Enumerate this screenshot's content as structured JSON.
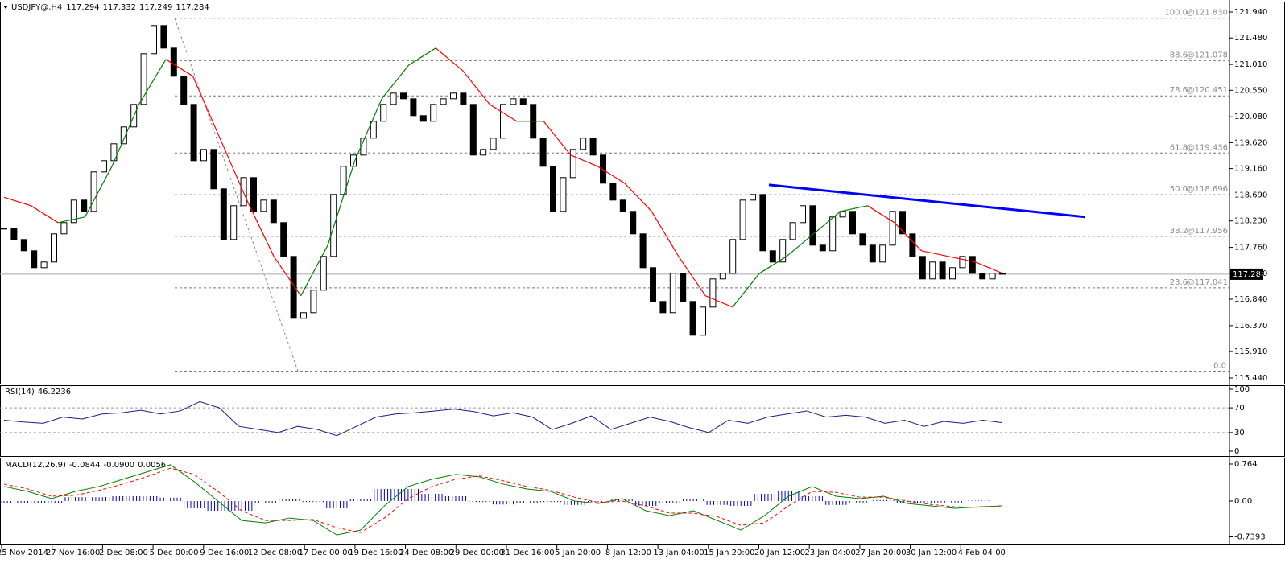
{
  "chart_data": [
    {
      "type": "candlestick",
      "title": "USDJPY@,H4",
      "header_values": [
        "117.294",
        "117.332",
        "117.249",
        "117.284"
      ],
      "closes": [
        118.1,
        117.9,
        117.7,
        117.4,
        117.5,
        118.0,
        118.2,
        118.6,
        118.4,
        119.1,
        119.3,
        119.6,
        119.9,
        120.3,
        121.2,
        121.7,
        121.3,
        120.8,
        120.3,
        119.3,
        119.5,
        118.8,
        117.9,
        118.5,
        119.0,
        118.4,
        118.6,
        118.2,
        117.6,
        116.5,
        116.6,
        117.0,
        117.6,
        118.7,
        119.2,
        119.4,
        119.7,
        120.0,
        120.3,
        120.5,
        120.4,
        120.1,
        120.0,
        120.3,
        120.4,
        120.5,
        120.3,
        119.4,
        119.5,
        119.7,
        120.3,
        120.4,
        120.3,
        119.7,
        119.2,
        118.4,
        119.0,
        119.5,
        119.7,
        119.4,
        118.9,
        118.6,
        118.4,
        118.0,
        117.4,
        116.8,
        116.6,
        117.3,
        116.8,
        116.2,
        116.7,
        117.2,
        117.3,
        117.9,
        118.6,
        118.7,
        117.7,
        117.5,
        117.9,
        118.2,
        118.5,
        117.8,
        117.7,
        118.3,
        118.4,
        118.0,
        117.8,
        117.5,
        117.8,
        118.4,
        118.0,
        117.6,
        117.2,
        117.5,
        117.2,
        117.4,
        117.6,
        117.3,
        117.2,
        117.3,
        117.284
      ],
      "ma": [
        118.65,
        118.5,
        118.2,
        118.3,
        119.2,
        120.3,
        121.1,
        120.8,
        119.7,
        118.6,
        117.6,
        116.9,
        117.8,
        119.3,
        120.4,
        121.0,
        121.3,
        120.9,
        120.3,
        120.0,
        120.0,
        119.4,
        119.2,
        118.9,
        118.4,
        117.6,
        116.9,
        116.7,
        117.3,
        117.6,
        118.0,
        118.4,
        118.5,
        118.2,
        117.7,
        117.6,
        117.5,
        117.3
      ],
      "ma_colors": {
        "rising": "#008000",
        "falling": "#ff0000"
      },
      "candle_colors": {
        "up": "#ffffff",
        "down": "#000000",
        "outline": "#000000"
      },
      "ylim": [
        115.34,
        122.126
      ],
      "yticks": [
        {
          "value": 121.94,
          "label": "121.940"
        },
        {
          "value": 121.48,
          "label": "121.480"
        },
        {
          "value": 121.01,
          "label": "121.010"
        },
        {
          "value": 120.55,
          "label": "120.550"
        },
        {
          "value": 120.08,
          "label": "120.080"
        },
        {
          "value": 119.62,
          "label": "119.620"
        },
        {
          "value": 119.16,
          "label": "119.160"
        },
        {
          "value": 118.69,
          "label": "118.690"
        },
        {
          "value": 118.23,
          "label": "118.230"
        },
        {
          "value": 117.76,
          "label": "117.760"
        },
        {
          "value": 117.3,
          "label": "117.300"
        },
        {
          "value": 116.84,
          "label": "116.840"
        },
        {
          "value": 116.37,
          "label": "116.370"
        },
        {
          "value": 115.91,
          "label": "115.910"
        },
        {
          "value": 115.44,
          "label": "115.440"
        }
      ],
      "current_price": 117.284,
      "fib": [
        {
          "level": "100.0",
          "price_label": "@121.830",
          "price": 121.83
        },
        {
          "level": "88.6",
          "price_label": "@121.078",
          "price": 121.078
        },
        {
          "level": "78.6",
          "price_label": "@120.451",
          "price": 120.451
        },
        {
          "level": "61.8",
          "price_label": "@119.436",
          "price": 119.436
        },
        {
          "level": "50.0",
          "price_label": "@118.696",
          "price": 118.696
        },
        {
          "level": "38.2",
          "price_label": "@117.956",
          "price": 117.956
        },
        {
          "level": "23.6",
          "price_label": "@117.041",
          "price": 117.041
        },
        {
          "level": "0.0",
          "price": 115.562
        }
      ],
      "trendline": {
        "color": "#0000ff",
        "values": [
          118.87,
          118.3
        ]
      },
      "categories": [
        "25 Nov 2014",
        "27 Nov 16:00",
        "2 Dec 08:00",
        "5 Dec 00:00",
        "9 Dec 16:00",
        "12 Dec 08:00",
        "17 Dec 00:00",
        "19 Dec 16:00",
        "24 Dec 08:00",
        "29 Dec 00:00",
        "31 Dec 16:00",
        "5 Jan 20:00",
        "8 Jan 12:00",
        "13 Jan 04:00",
        "15 Jan 20:00",
        "20 Jan 12:00",
        "23 Jan 04:00",
        "27 Jan 20:00",
        "30 Jan 12:00",
        "4 Feb 04:00"
      ]
    },
    {
      "type": "line",
      "title": "RSI(14)",
      "header_values": [
        "46.2236"
      ],
      "color": "#1c1c8c",
      "values": [
        50,
        47,
        45,
        55,
        52,
        60,
        62,
        66,
        60,
        65,
        80,
        70,
        40,
        35,
        30,
        40,
        35,
        25,
        40,
        55,
        60,
        62,
        65,
        68,
        64,
        57,
        62,
        55,
        35,
        45,
        57,
        35,
        45,
        55,
        48,
        38,
        30,
        50,
        45,
        55,
        60,
        65,
        55,
        58,
        55,
        45,
        50,
        40,
        48,
        45,
        50,
        46
      ],
      "ylim": [
        -7.8,
        106.5
      ],
      "yticks": [
        100,
        70,
        30,
        0
      ],
      "levels": [
        70,
        30
      ]
    },
    {
      "type": "macd",
      "title": "MACD(12,26,9)",
      "header_values": [
        "-0.0844",
        "-0.0900",
        "0.0056"
      ],
      "main": {
        "color": "#008000",
        "values": [
          0.3,
          0.2,
          0.05,
          0.2,
          0.3,
          0.45,
          0.6,
          0.75,
          0.4,
          0.0,
          -0.4,
          -0.45,
          -0.35,
          -0.4,
          -0.7,
          -0.6,
          -0.1,
          0.3,
          0.45,
          0.55,
          0.5,
          0.35,
          0.25,
          0.2,
          0.0,
          -0.05,
          0.05,
          -0.2,
          -0.3,
          -0.2,
          -0.4,
          -0.6,
          -0.3,
          0.1,
          0.3,
          0.1,
          0.05,
          0.1,
          -0.05,
          -0.1,
          -0.15,
          -0.12,
          -0.1
        ]
      },
      "signal": {
        "color": "#ff0000",
        "values": [
          0.35,
          0.25,
          0.1,
          0.12,
          0.22,
          0.35,
          0.5,
          0.68,
          0.55,
          0.2,
          -0.2,
          -0.4,
          -0.4,
          -0.38,
          -0.55,
          -0.65,
          -0.35,
          0.05,
          0.3,
          0.45,
          0.52,
          0.42,
          0.3,
          0.22,
          0.08,
          -0.03,
          0.0,
          -0.1,
          -0.25,
          -0.25,
          -0.32,
          -0.5,
          -0.45,
          -0.1,
          0.2,
          0.18,
          0.08,
          0.08,
          0.0,
          -0.07,
          -0.12,
          -0.13,
          -0.1
        ]
      },
      "histogram": {
        "color": "#0000cd",
        "values": [
          -0.05,
          -0.05,
          -0.05,
          0.08,
          0.08,
          0.1,
          0.1,
          0.07,
          -0.15,
          -0.2,
          -0.2,
          -0.05,
          0.05,
          -0.02,
          -0.15,
          0.05,
          0.25,
          0.25,
          0.15,
          0.1,
          -0.02,
          -0.07,
          -0.05,
          -0.02,
          -0.08,
          -0.02,
          0.05,
          -0.1,
          -0.05,
          0.05,
          -0.08,
          -0.1,
          0.15,
          0.2,
          0.1,
          -0.08,
          -0.03,
          0.02,
          -0.05,
          -0.03,
          -0.03,
          0.01,
          0.0
        ]
      },
      "ylim": [
        -0.897,
        0.897
      ],
      "yticks": [
        0.764,
        {
          "value": 0,
          "label": "0.00"
        },
        -0.7393
      ]
    }
  ]
}
